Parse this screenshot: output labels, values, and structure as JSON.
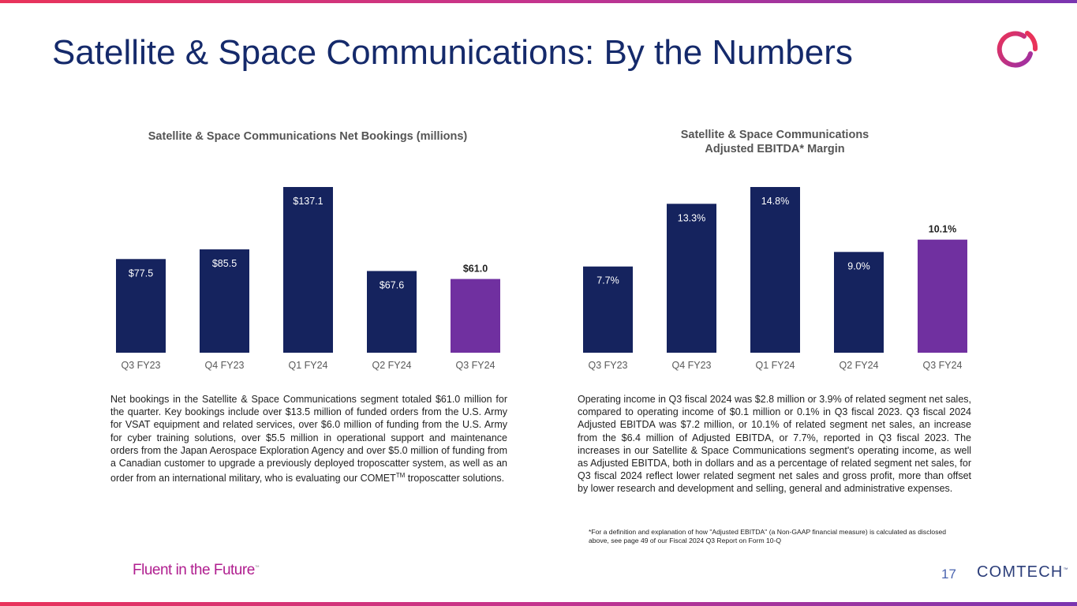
{
  "page": {
    "title": "Satellite & Space Communications: By the Numbers",
    "tagline": "Fluent in the Future",
    "tagline_mark": "™",
    "page_number": "17",
    "brand": "COMTECH",
    "brand_mark": "™"
  },
  "colors": {
    "navy": "#15235e",
    "purple": "#7030a0",
    "title": "#152a6b",
    "accent_red": "#e9335a"
  },
  "chart_data": [
    {
      "type": "bar",
      "title": "Satellite & Space Communications Net Bookings (millions)",
      "categories": [
        "Q3 FY23",
        "Q4 FY23",
        "Q1 FY24",
        "Q2 FY24",
        "Q3 FY24"
      ],
      "values": [
        77.5,
        85.5,
        137.1,
        67.6,
        61.0
      ],
      "labels": [
        "$77.5",
        "$85.5",
        "$137.1",
        "$67.6",
        "$61.0"
      ],
      "highlight_index": 4,
      "ylim": [
        0,
        137.1
      ],
      "xlabel": "",
      "ylabel": ""
    },
    {
      "type": "bar",
      "title_line1": "Satellite & Space Communications",
      "title_line2": "Adjusted EBITDA* Margin",
      "categories": [
        "Q3 FY23",
        "Q4 FY23",
        "Q1 FY24",
        "Q2 FY24",
        "Q3 FY24"
      ],
      "values": [
        7.7,
        13.3,
        14.8,
        9.0,
        10.1
      ],
      "labels": [
        "7.7%",
        "13.3%",
        "14.8%",
        "9.0%",
        "10.1%"
      ],
      "highlight_index": 4,
      "ylim": [
        0,
        14.8
      ],
      "xlabel": "",
      "ylabel": ""
    }
  ],
  "text": {
    "left_paragraph": "Net bookings in the Satellite & Space Communications segment totaled $61.0 million for the quarter. Key bookings include over $13.5 million of funded orders from the U.S. Army for VSAT equipment and related services, over $6.0 million of funding from the U.S. Army for cyber training solutions, over $5.5 million in operational support and maintenance orders from the Japan Aerospace Exploration Agency and over $5.0 million of funding from a Canadian customer to upgrade a previously deployed troposcatter system, as well as an order from an international military, who is evaluating our COMET",
    "left_paragraph_sup": "TM",
    "left_paragraph_end": " troposcatter solutions.",
    "right_paragraph": "Operating income in Q3 fiscal 2024 was $2.8 million or 3.9% of related segment net sales, compared to operating income of $0.1 million or 0.1% in Q3 fiscal 2023. Q3 fiscal 2024 Adjusted EBITDA was $7.2 million, or 10.1% of related segment net sales, an increase from the $6.4 million of Adjusted EBITDA, or 7.7%, reported in Q3 fiscal 2023. The increases in our Satellite & Space Communications segment's operating income, as well as Adjusted EBITDA, both in dollars and as a percentage of related segment net sales, for Q3 fiscal 2024 reflect lower related segment net sales and gross profit, more than offset by lower research and development and selling, general and administrative expenses.",
    "footnote": "*For a definition and explanation of how \"Adjusted EBITDA\" (a Non-GAAP financial measure) is calculated as disclosed above, see page 49 of our Fiscal 2024 Q3 Report on Form 10-Q"
  }
}
